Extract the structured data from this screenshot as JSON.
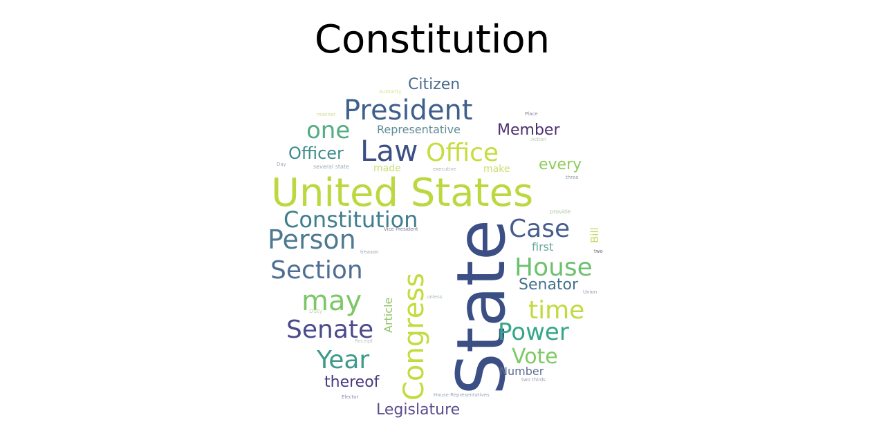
{
  "title": "Constitution",
  "colors": {
    "background": "#ffffff",
    "title": "#000000"
  },
  "words": [
    {
      "text": "State",
      "color": "#3b4f85",
      "vertical": true
    },
    {
      "text": "United States",
      "color": "#bcd840",
      "vertical": false
    },
    {
      "text": "Congress",
      "color": "#c3dc3d",
      "vertical": true
    },
    {
      "text": "President",
      "color": "#3f5f8d",
      "vertical": false
    },
    {
      "text": "Law",
      "color": "#3c4f85",
      "vertical": false
    },
    {
      "text": "Office",
      "color": "#c6dd3e",
      "vertical": false
    },
    {
      "text": "Constitution",
      "color": "#3e7e8d",
      "vertical": false
    },
    {
      "text": "Person",
      "color": "#4d7991",
      "vertical": false
    },
    {
      "text": "Section",
      "color": "#4e6e93",
      "vertical": false
    },
    {
      "text": "Case",
      "color": "#465d8e",
      "vertical": false
    },
    {
      "text": "House",
      "color": "#6fc170",
      "vertical": false
    },
    {
      "text": "may",
      "color": "#7bc766",
      "vertical": false
    },
    {
      "text": "time",
      "color": "#c1da3f",
      "vertical": false
    },
    {
      "text": "Senate",
      "color": "#4b4a8c",
      "vertical": false
    },
    {
      "text": "Power",
      "color": "#34a68a",
      "vertical": false
    },
    {
      "text": "Year",
      "color": "#3d9a8c",
      "vertical": false
    },
    {
      "text": "Vote",
      "color": "#7fc963",
      "vertical": false
    },
    {
      "text": "one",
      "color": "#52ad83",
      "vertical": false
    },
    {
      "text": "Officer",
      "color": "#3f8d8c",
      "vertical": false
    },
    {
      "text": "Member",
      "color": "#4d2f6e",
      "vertical": false
    },
    {
      "text": "Citizen",
      "color": "#4b6a8e",
      "vertical": false
    },
    {
      "text": "every",
      "color": "#8fcc5c",
      "vertical": false
    },
    {
      "text": "Senator",
      "color": "#43718d",
      "vertical": false
    },
    {
      "text": "thereof",
      "color": "#4b3a7e",
      "vertical": false
    },
    {
      "text": "Legislature",
      "color": "#5b4c8e",
      "vertical": false
    },
    {
      "text": "Representative",
      "color": "#5f8c95",
      "vertical": false
    },
    {
      "text": "Article",
      "color": "#8fc563",
      "vertical": true
    },
    {
      "text": "Number",
      "color": "#5d6c94",
      "vertical": false
    },
    {
      "text": "first",
      "color": "#6aa79a",
      "vertical": false
    },
    {
      "text": "Bill",
      "color": "#c8d861",
      "vertical": true
    },
    {
      "text": "made",
      "color": "#c9dc73",
      "vertical": false
    },
    {
      "text": "make",
      "color": "#c7de70",
      "vertical": false
    },
    {
      "text": "Authority",
      "color": "#d7e388",
      "vertical": false
    },
    {
      "text": "Place",
      "color": "#8b7ea0",
      "vertical": false
    },
    {
      "text": "manner",
      "color": "#cdd98f",
      "vertical": false
    },
    {
      "text": "Action",
      "color": "#b8c9b8",
      "vertical": false
    },
    {
      "text": "Day",
      "color": "#a4a9b8",
      "vertical": false
    },
    {
      "text": "several state",
      "color": "#9aaab2",
      "vertical": false
    },
    {
      "text": "executive",
      "color": "#a8b0b6",
      "vertical": false
    },
    {
      "text": "three",
      "color": "#8e9aa8",
      "vertical": false
    },
    {
      "text": "provide",
      "color": "#b0c3a8",
      "vertical": false
    },
    {
      "text": "Vice President",
      "color": "#7a6f96",
      "vertical": false
    },
    {
      "text": "treason",
      "color": "#9aa5b3",
      "vertical": false
    },
    {
      "text": "two",
      "color": "#6a5f86",
      "vertical": false
    },
    {
      "text": "Union",
      "color": "#8b9cb0",
      "vertical": false
    },
    {
      "text": "unless",
      "color": "#a7b8bd",
      "vertical": false
    },
    {
      "text": "Duty",
      "color": "#c2d3a4",
      "vertical": false
    },
    {
      "text": "Receipt",
      "color": "#b7c4c1",
      "vertical": false
    },
    {
      "text": "two thirds",
      "color": "#9c9fb1",
      "vertical": false
    },
    {
      "text": "House Representatives",
      "color": "#97a7b4",
      "vertical": false
    },
    {
      "text": "Elector",
      "color": "#8f86a8",
      "vertical": false
    }
  ]
}
